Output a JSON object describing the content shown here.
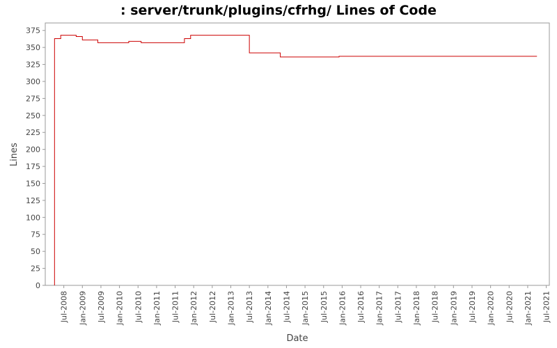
{
  "chart_data": {
    "type": "step-line",
    "title": ": server/trunk/plugins/cfrhg/ Lines of Code",
    "x_label": "Date",
    "y_label": "Lines",
    "x": [
      "2008-04",
      "2008-04",
      "2008-06",
      "2008-11",
      "2009-01",
      "2009-06",
      "2010-04",
      "2010-08",
      "2011-10",
      "2011-12",
      "2013-07",
      "2014-05",
      "2015-12",
      "2021-04"
    ],
    "series": [
      {
        "name": "Lines",
        "color": "#cc0000",
        "values": [
          0,
          363,
          368,
          366,
          361,
          357,
          359,
          357,
          363,
          368,
          342,
          336,
          337,
          337
        ]
      }
    ],
    "xlim": [
      "2008-01",
      "2021-08"
    ],
    "xticks": [
      {
        "value": "2008-07",
        "label": "Jul-2008"
      },
      {
        "value": "2009-01",
        "label": "Jan-2009"
      },
      {
        "value": "2009-07",
        "label": "Jul-2009"
      },
      {
        "value": "2010-01",
        "label": "Jan-2010"
      },
      {
        "value": "2010-07",
        "label": "Jul-2010"
      },
      {
        "value": "2011-01",
        "label": "Jan-2011"
      },
      {
        "value": "2011-07",
        "label": "Jul-2011"
      },
      {
        "value": "2012-01",
        "label": "Jan-2012"
      },
      {
        "value": "2012-07",
        "label": "Jul-2012"
      },
      {
        "value": "2013-01",
        "label": "Jan-2013"
      },
      {
        "value": "2013-07",
        "label": "Jul-2013"
      },
      {
        "value": "2014-01",
        "label": "Jan-2014"
      },
      {
        "value": "2014-07",
        "label": "Jul-2014"
      },
      {
        "value": "2015-01",
        "label": "Jan-2015"
      },
      {
        "value": "2015-07",
        "label": "Jul-2015"
      },
      {
        "value": "2016-01",
        "label": "Jan-2016"
      },
      {
        "value": "2016-07",
        "label": "Jul-2016"
      },
      {
        "value": "2017-01",
        "label": "Jan-2017"
      },
      {
        "value": "2017-07",
        "label": "Jul-2017"
      },
      {
        "value": "2018-01",
        "label": "Jan-2018"
      },
      {
        "value": "2018-07",
        "label": "Jul-2018"
      },
      {
        "value": "2019-01",
        "label": "Jan-2019"
      },
      {
        "value": "2019-07",
        "label": "Jul-2019"
      },
      {
        "value": "2020-01",
        "label": "Jan-2020"
      },
      {
        "value": "2020-07",
        "label": "Jul-2020"
      },
      {
        "value": "2021-01",
        "label": "Jan-2021"
      },
      {
        "value": "2021-07",
        "label": "Jul-2021"
      }
    ],
    "ylim": [
      0,
      386
    ],
    "yticks": [
      0,
      25,
      50,
      75,
      100,
      125,
      150,
      175,
      200,
      225,
      250,
      275,
      300,
      325,
      350,
      375
    ]
  }
}
